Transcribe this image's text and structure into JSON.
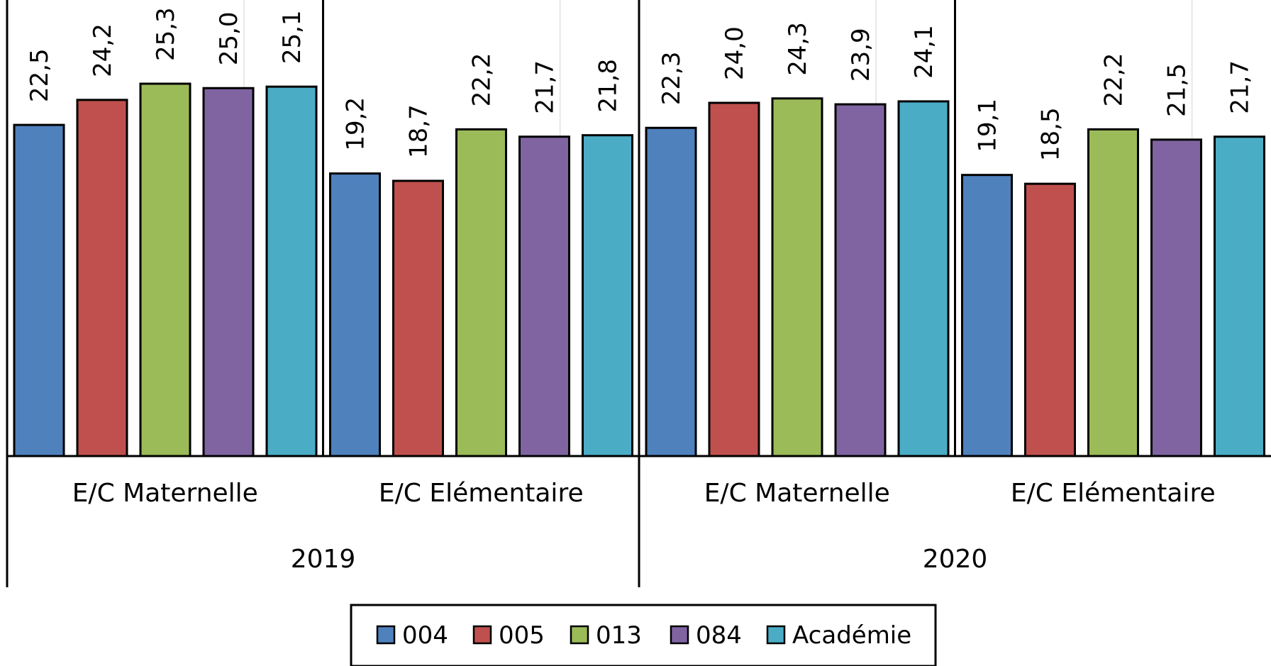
{
  "chart_data": {
    "type": "bar",
    "groups": [
      {
        "label": "2019",
        "categories": [
          "E/C Maternelle",
          "E/C Elémentaire"
        ]
      },
      {
        "label": "2020",
        "categories": [
          "E/C Maternelle",
          "E/C Elémentaire"
        ]
      }
    ],
    "series": [
      {
        "name": "004",
        "color": "#4F81BD",
        "values": [
          22.5,
          19.2,
          22.3,
          19.1
        ]
      },
      {
        "name": "005",
        "color": "#C0504D",
        "values": [
          24.2,
          18.7,
          24.0,
          18.5
        ]
      },
      {
        "name": "013",
        "color": "#9BBB59",
        "values": [
          25.3,
          22.2,
          24.3,
          22.2
        ]
      },
      {
        "name": "084",
        "color": "#8064A2",
        "values": [
          25.0,
          21.7,
          23.9,
          21.5
        ]
      },
      {
        "name": "Académie",
        "color": "#4BACC6",
        "values": [
          25.1,
          21.8,
          24.1,
          21.7
        ]
      }
    ],
    "value_labels": [
      [
        "22,5",
        "19,2",
        "22,3",
        "19,1"
      ],
      [
        "24,2",
        "18,7",
        "24,0",
        "18,5"
      ],
      [
        "25,3",
        "22,2",
        "24,3",
        "22,2"
      ],
      [
        "25,0",
        "21,7",
        "23,9",
        "21,5"
      ],
      [
        "25,1",
        "21,8",
        "24,1",
        "21,7"
      ]
    ],
    "ylim": [
      0,
      30
    ],
    "title": "",
    "xlabel": "",
    "ylabel": "",
    "legend_position": "bottom",
    "grid": false
  }
}
